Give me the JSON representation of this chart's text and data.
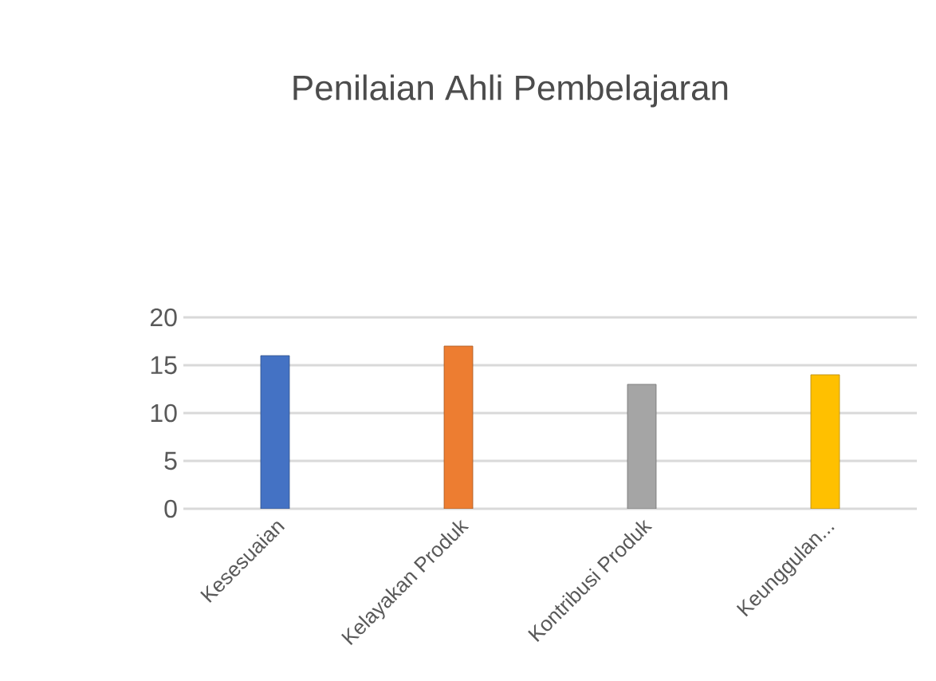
{
  "chart_data": {
    "type": "bar",
    "title": "Penilaian Ahli Pembelajaran",
    "categories": [
      "Kesesuaian",
      "Kelayakan Produk",
      "Kontribusi Produk",
      "Keunggulan..."
    ],
    "values": [
      16,
      17,
      13,
      14
    ],
    "colors": [
      "#4472c4",
      "#ed7d31",
      "#a5a5a5",
      "#ffc000"
    ],
    "ylim": [
      0,
      20
    ],
    "yticks": [
      0,
      5,
      10,
      15,
      20
    ],
    "grid": "y"
  }
}
